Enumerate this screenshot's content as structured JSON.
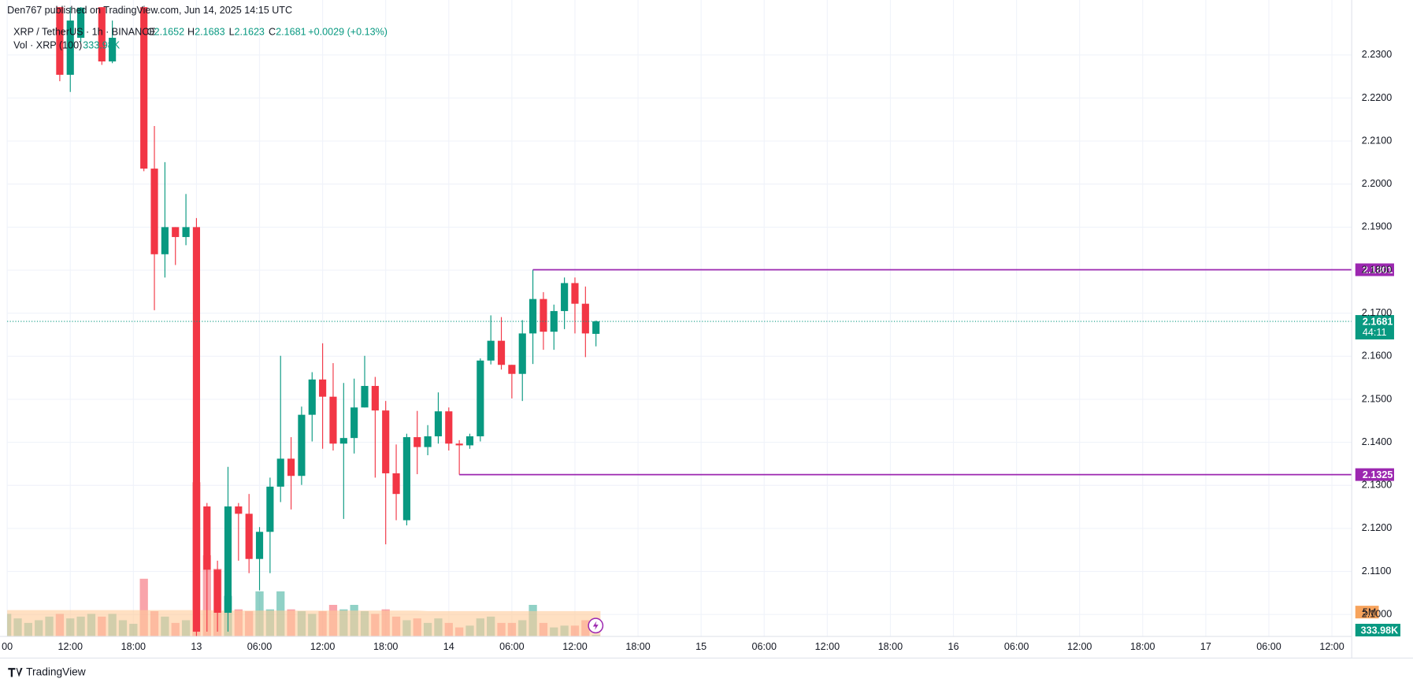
{
  "header": {
    "byline": "Den767 published on TradingView.com, Jun 14, 2025 14:15 UTC"
  },
  "footer": {
    "brand": "TradingView"
  },
  "chart_data": {
    "type": "candlestick",
    "title": "XRP / TetherUS · 1h · BINANCE",
    "legend_keys": [
      "O",
      "H",
      "L",
      "C"
    ],
    "change_label": "+0.0029 (+0.13%)",
    "countdown": "44:11",
    "up_color": "#089981",
    "down_color": "#f23645",
    "grid": true,
    "categories": [
      "00",
      null,
      null,
      null,
      null,
      null,
      "12:00",
      null,
      null,
      null,
      null,
      null,
      "18:00",
      null,
      null,
      null,
      null,
      null,
      "13",
      null,
      null,
      null,
      null,
      null,
      "06:00",
      null,
      null,
      null,
      null,
      null,
      "12:00",
      null,
      null,
      null,
      null,
      null,
      "18:00",
      null,
      null,
      null,
      null,
      null,
      "14",
      null,
      null,
      null,
      null,
      null,
      "06:00",
      null,
      null,
      null,
      null,
      null,
      "12:00",
      null,
      null,
      null,
      null,
      null,
      "18:00",
      null,
      null,
      null,
      null,
      null,
      "15",
      null,
      null,
      null,
      null,
      null,
      "06:00",
      null,
      null,
      null,
      null,
      null,
      "12:00",
      null,
      null,
      null,
      null,
      null,
      "18:00",
      null,
      null,
      null,
      null,
      null,
      "16",
      null,
      null,
      null,
      null,
      null,
      "06:00",
      null,
      null,
      null,
      null,
      null,
      "12:00",
      null,
      null,
      null,
      null,
      null,
      "18:00",
      null,
      null,
      null,
      null,
      null,
      "17",
      null,
      null,
      null,
      null,
      null,
      "06:00",
      null,
      null,
      null,
      null,
      null,
      "12:00"
    ],
    "open": [
      null,
      null,
      null,
      null,
      null,
      2.244,
      2.2254,
      2.234,
      null,
      2.242,
      2.2285,
      null,
      null,
      2.242,
      2.2036,
      2.1837,
      2.19,
      2.1877,
      2.19,
      2.1251,
      2.1104,
      2.1004,
      2.1251,
      2.1234,
      2.1129,
      2.1192,
      2.1297,
      2.1362,
      2.1322,
      2.1464,
      2.1546,
      2.1506,
      2.1397,
      2.141,
      2.1481,
      2.1531,
      2.1474,
      2.1328,
      2.1219,
      2.1412,
      2.1389,
      2.1414,
      2.1472,
      2.1397,
      2.1393,
      2.1414,
      2.159,
      2.1636,
      2.158,
      2.1559,
      2.1653,
      2.1733,
      2.1657,
      2.1705,
      2.177,
      2.1722,
      2.1652,
      null,
      null,
      null,
      null,
      null,
      null,
      null,
      null,
      null,
      null,
      null,
      null,
      null,
      null,
      null,
      null,
      null,
      null,
      null,
      null,
      null,
      null,
      null,
      null,
      null,
      null,
      null,
      null,
      null,
      null,
      null,
      null,
      null,
      null,
      null,
      null,
      null,
      null,
      null,
      null,
      null,
      null,
      null,
      null,
      null,
      null,
      null,
      null,
      null,
      null,
      null,
      null,
      null,
      null,
      null,
      null,
      null,
      null,
      null,
      null,
      null,
      null,
      null,
      null,
      null,
      null,
      null,
      null,
      null,
      null
    ],
    "high": [
      null,
      null,
      null,
      null,
      null,
      2.246,
      2.242,
      2.245,
      null,
      2.244,
      2.238,
      null,
      null,
      2.244,
      2.2135,
      2.2051,
      2.19,
      2.1977,
      2.1921,
      2.1259,
      2.1125,
      2.1343,
      2.1259,
      2.128,
      2.1203,
      2.1318,
      2.1601,
      2.1412,
      2.1483,
      2.1563,
      2.163,
      2.1584,
      2.1538,
      2.1548,
      2.1601,
      2.1552,
      2.1496,
      2.1395,
      2.142,
      2.1473,
      2.144,
      2.1516,
      2.1481,
      2.1405,
      2.142,
      2.1595,
      2.1695,
      2.1691,
      2.158,
      2.1684,
      2.1801,
      2.1749,
      2.172,
      2.1783,
      2.1783,
      2.1762,
      2.1683,
      null,
      null,
      null,
      null,
      null,
      null,
      null,
      null,
      null,
      null,
      null,
      null,
      null,
      null,
      null,
      null,
      null,
      null,
      null,
      null,
      null,
      null,
      null,
      null,
      null,
      null,
      null,
      null,
      null,
      null,
      null,
      null,
      null,
      null,
      null,
      null,
      null,
      null,
      null,
      null,
      null,
      null,
      null,
      null,
      null,
      null,
      null,
      null,
      null,
      null,
      null,
      null,
      null,
      null,
      null,
      null,
      null,
      null,
      null,
      null,
      null,
      null,
      null,
      null,
      null,
      null,
      null,
      null,
      null,
      null
    ],
    "low": [
      null,
      null,
      null,
      null,
      null,
      2.2239,
      2.2214,
      2.233,
      null,
      2.2277,
      2.2281,
      null,
      null,
      2.203,
      2.1707,
      2.1783,
      2.1812,
      2.1858,
      2.095,
      2.096,
      2.096,
      2.096,
      2.1125,
      2.1096,
      2.1056,
      2.1096,
      2.1261,
      2.1244,
      2.1301,
      2.1402,
      2.1385,
      2.1381,
      2.1222,
      2.1374,
      2.1481,
      2.1318,
      2.1163,
      2.1219,
      2.1207,
      2.1326,
      2.137,
      2.1397,
      2.1381,
      2.1325,
      2.1385,
      2.1402,
      2.1581,
      2.1569,
      2.1502,
      2.1496,
      2.1582,
      2.1615,
      2.1615,
      2.1663,
      2.1653,
      2.1598,
      2.1623,
      null,
      null,
      null,
      null,
      null,
      null,
      null,
      null,
      null,
      null,
      null,
      null,
      null,
      null,
      null,
      null,
      null,
      null,
      null,
      null,
      null,
      null,
      null,
      null,
      null,
      null,
      null,
      null,
      null,
      null,
      null,
      null,
      null,
      null,
      null,
      null,
      null,
      null,
      null,
      null,
      null,
      null,
      null,
      null,
      null,
      null,
      null,
      null,
      null,
      null,
      null,
      null,
      null,
      null,
      null,
      null,
      null,
      null,
      null,
      null,
      null,
      null,
      null,
      null,
      null,
      null,
      null,
      null,
      null,
      null
    ],
    "close": [
      null,
      null,
      null,
      null,
      null,
      2.2254,
      2.238,
      2.241,
      null,
      2.2285,
      2.234,
      null,
      null,
      2.2036,
      2.1837,
      2.19,
      2.1877,
      2.19,
      2.096,
      2.1104,
      2.1004,
      2.1251,
      2.1234,
      2.1129,
      2.1192,
      2.1297,
      2.1362,
      2.1322,
      2.1464,
      2.1546,
      2.1506,
      2.1397,
      2.141,
      2.1481,
      2.1531,
      2.1474,
      2.1328,
      2.128,
      2.1412,
      2.1389,
      2.1414,
      2.1472,
      2.1397,
      2.1393,
      2.1414,
      2.159,
      2.1636,
      2.158,
      2.1559,
      2.1653,
      2.1733,
      2.1657,
      2.1705,
      2.177,
      2.1722,
      2.1653,
      2.1681,
      null,
      null,
      null,
      null,
      null,
      null,
      null,
      null,
      null,
      null,
      null,
      null,
      null,
      null,
      null,
      null,
      null,
      null,
      null,
      null,
      null,
      null,
      null,
      null,
      null,
      null,
      null,
      null,
      null,
      null,
      null,
      null,
      null,
      null,
      null,
      null,
      null,
      null,
      null,
      null,
      null,
      null,
      null,
      null,
      null,
      null,
      null,
      null,
      null,
      null,
      null,
      null,
      null,
      null,
      null,
      null,
      null,
      null,
      null,
      null,
      null,
      null,
      null,
      null,
      null,
      null,
      null,
      null,
      null,
      null
    ],
    "ylim": [
      2.0949,
      2.2411
    ],
    "yticks": [
      {
        "value": 2.1,
        "label": "2.1000"
      },
      {
        "value": 2.11,
        "label": "2.1100"
      },
      {
        "value": 2.12,
        "label": "2.1200"
      },
      {
        "value": 2.13,
        "label": "2.1300"
      },
      {
        "value": 2.14,
        "label": "2.1400"
      },
      {
        "value": 2.15,
        "label": "2.1500"
      },
      {
        "value": 2.16,
        "label": "2.1600"
      },
      {
        "value": 2.17,
        "label": "2.1700"
      },
      {
        "value": 2.18,
        "label": "2.1800"
      },
      {
        "value": 2.19,
        "label": "2.1900"
      },
      {
        "value": 2.2,
        "label": "2.2000"
      },
      {
        "value": 2.21,
        "label": "2.2100"
      },
      {
        "value": 2.22,
        "label": "2.2200"
      },
      {
        "value": 2.23,
        "label": "2.2300"
      }
    ],
    "levels": [
      {
        "value": 2.1801,
        "color": "#9c27b0"
      },
      {
        "value": 2.1325,
        "color": "#9c27b0"
      }
    ],
    "volume": {
      "name": "Vol · XRP (100)",
      "last_value_label": "333.98K",
      "ma_color": "#ffcc99",
      "ylim": [
        0,
        35000000
      ],
      "yticks": [
        {
          "value": 5000000,
          "label": "5M"
        }
      ],
      "values": [
        4630000,
        3700000,
        2780000,
        3330000,
        4070000,
        4630000,
        3700000,
        4070000,
        4630000,
        4070000,
        4630000,
        3330000,
        2590000,
        11850000,
        5190000,
        4070000,
        2780000,
        3330000,
        31670000,
        16670000,
        13890000,
        8330000,
        5560000,
        5190000,
        9260000,
        5560000,
        9260000,
        5560000,
        5190000,
        4630000,
        5190000,
        6480000,
        5560000,
        6480000,
        5190000,
        4630000,
        5560000,
        4070000,
        3330000,
        3700000,
        2780000,
        3700000,
        2780000,
        1850000,
        2220000,
        3700000,
        4070000,
        2780000,
        2780000,
        3330000,
        6480000,
        2780000,
        1850000,
        2220000,
        2220000,
        3330000,
        333980,
        null,
        null,
        null,
        null,
        null,
        null,
        null,
        null,
        null,
        null,
        null,
        null,
        null,
        null,
        null,
        null,
        null,
        null,
        null,
        null,
        null,
        null,
        null,
        null,
        null,
        null,
        null,
        null,
        null,
        null,
        null,
        null,
        null,
        null,
        null,
        null,
        null,
        null,
        null,
        null,
        null,
        null,
        null,
        null,
        null,
        null,
        null,
        null,
        null,
        null,
        null,
        null,
        null,
        null,
        null,
        null,
        null,
        null,
        null,
        null,
        null,
        null,
        null,
        null,
        null,
        null,
        null,
        null,
        null,
        null
      ],
      "ma": [
        5400000,
        5400000,
        5400000,
        5400000,
        5400000,
        5400000,
        5400000,
        5400000,
        5400000,
        5400000,
        5400000,
        5400000,
        5400000,
        5400000,
        5400000,
        5400000,
        5400000,
        5400000,
        5400000,
        5400000,
        5300000,
        5300000,
        5300000,
        5300000,
        5300000,
        5300000,
        5300000,
        5300000,
        5300000,
        5300000,
        5300000,
        5300000,
        5300000,
        5300000,
        5300000,
        5300000,
        5300000,
        5300000,
        5300000,
        5300000,
        5200000,
        5200000,
        5200000,
        5200000,
        5200000,
        5200000,
        5200000,
        5200000,
        5200000,
        5200000,
        5200000,
        5200000,
        5200000,
        5200000,
        5200000,
        5200000,
        5200000,
        null,
        null,
        null,
        null,
        null,
        null,
        null,
        null,
        null,
        null,
        null,
        null,
        null,
        null,
        null,
        null,
        null,
        null,
        null,
        null,
        null,
        null,
        null,
        null,
        null,
        null,
        null,
        null,
        null,
        null,
        null,
        null,
        null,
        null,
        null,
        null,
        null,
        null,
        null,
        null,
        null,
        null,
        null,
        null,
        null,
        null,
        null,
        null,
        null,
        null,
        null,
        null,
        null,
        null,
        null,
        null,
        null,
        null,
        null,
        null,
        null,
        null,
        null,
        null,
        null,
        null,
        null,
        null,
        null,
        null
      ]
    }
  }
}
